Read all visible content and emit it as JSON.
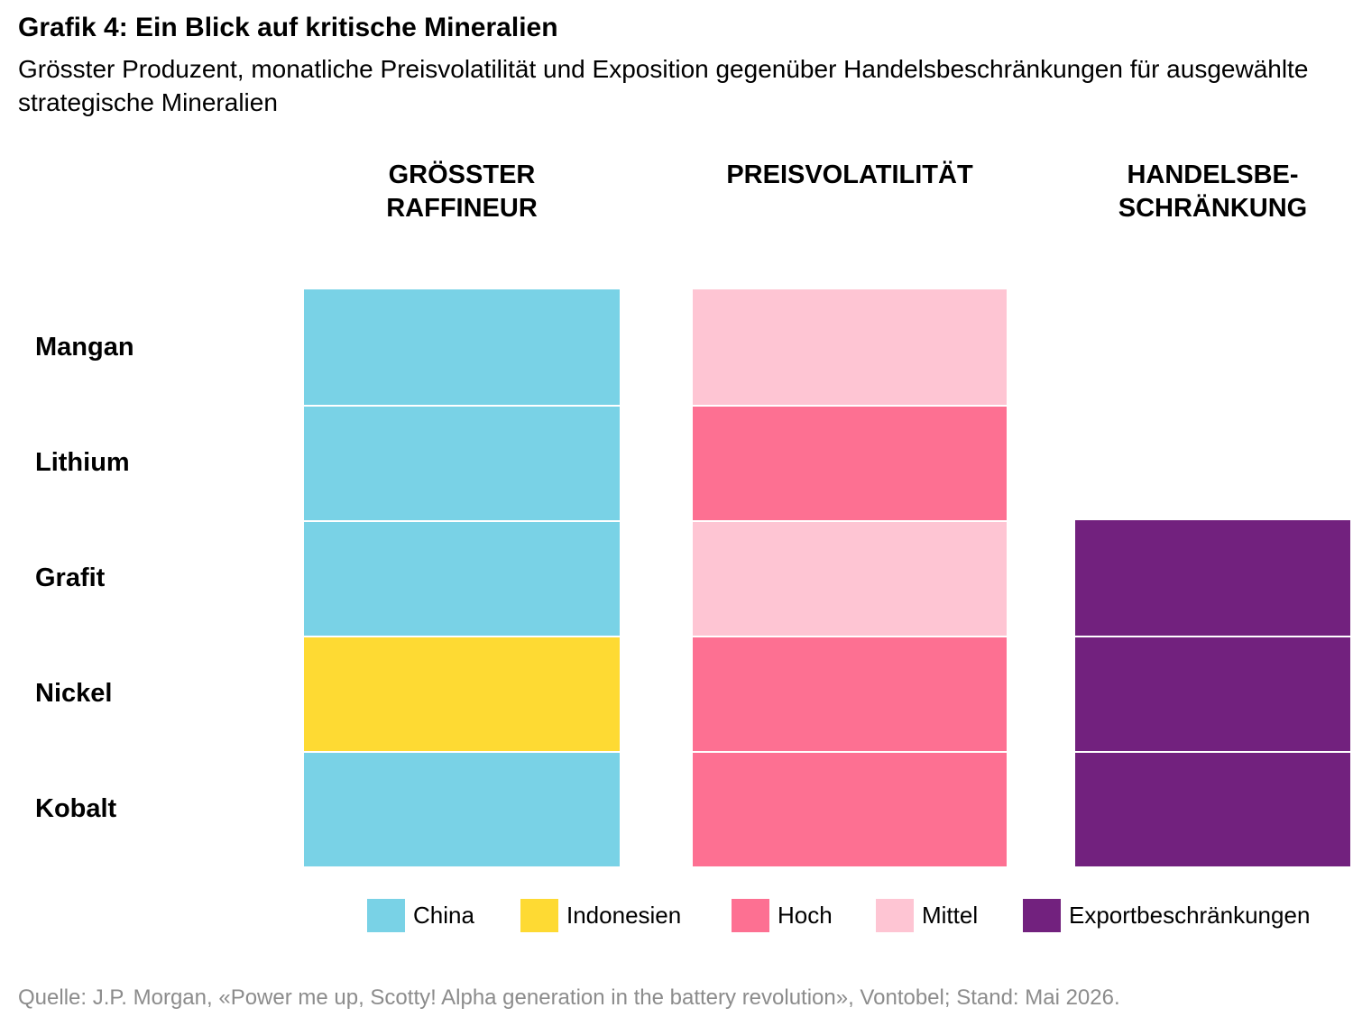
{
  "title": "Grafik 4: Ein Blick auf kritische Mineralien",
  "subtitle": "Grösster Produzent, monatliche Preisvolatilität und Exposition gegenüber Handelsbeschränkungen für ausgewählte strategische Mineralien",
  "source": "Quelle: J.P. Morgan, «Power me up, Scotty! Alpha generation in the battery revolution», Vontobel; Stand: Mai 2026.",
  "chart_data": {
    "type": "table",
    "columns": [
      {
        "key": "raffineur",
        "header": "GRÖSSTER\nRAFFINEUR"
      },
      {
        "key": "volatilitaet",
        "header": "PREISVOLATILITÄT"
      },
      {
        "key": "handel",
        "header": "HANDELSBE-\nSCHRÄNKUNG"
      }
    ],
    "rows": [
      {
        "label": "Mangan",
        "raffineur": "China",
        "volatilitaet": "Mittel",
        "handel": null
      },
      {
        "label": "Lithium",
        "raffineur": "China",
        "volatilitaet": "Hoch",
        "handel": null
      },
      {
        "label": "Grafit",
        "raffineur": "China",
        "volatilitaet": "Mittel",
        "handel": "Exportbeschränkungen"
      },
      {
        "label": "Nickel",
        "raffineur": "Indonesien",
        "volatilitaet": "Hoch",
        "handel": "Exportbeschränkungen"
      },
      {
        "label": "Kobalt",
        "raffineur": "China",
        "volatilitaet": "Hoch",
        "handel": "Exportbeschränkungen"
      }
    ],
    "legend": [
      {
        "label": "China",
        "color": "#79D2E6"
      },
      {
        "label": "Indonesien",
        "color": "#FEDA33"
      },
      {
        "label": "Hoch",
        "color": "#FD7092"
      },
      {
        "label": "Mittel",
        "color": "#FEC5D3"
      },
      {
        "label": "Exportbeschränkungen",
        "color": "#72217E"
      }
    ]
  }
}
